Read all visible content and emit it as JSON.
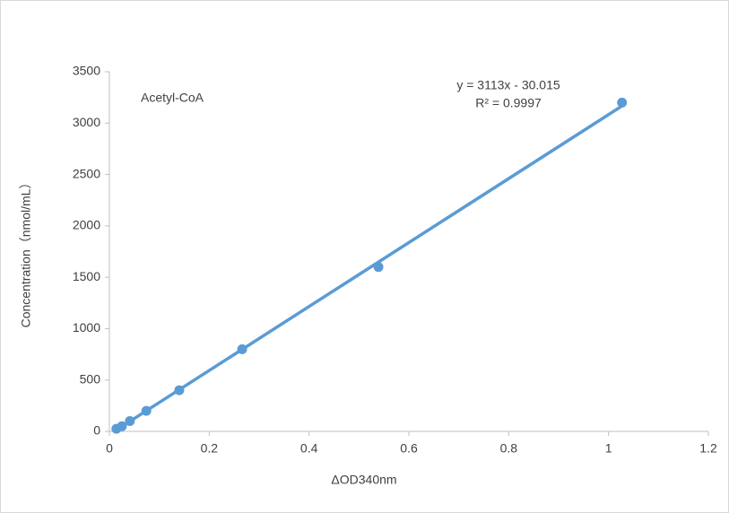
{
  "chart_data": {
    "type": "scatter",
    "annotation": "Acetyl-CoA",
    "x_label": "ΔOD340nm",
    "y_label": "Concentration（nmol/mL）",
    "series": [
      {
        "name": "Acetyl-CoA",
        "color": "#5b9bd5",
        "x": [
          0.014,
          0.025,
          0.041,
          0.074,
          0.14,
          0.266,
          0.539,
          1.027
        ],
        "values": [
          25,
          50,
          100,
          200,
          400,
          800,
          1600,
          3200
        ]
      }
    ],
    "trendline": {
      "slope": 3113,
      "intercept": -30.015,
      "equation": "y = 3113x - 30.015",
      "r2": "R² = 0.9997",
      "color": "#5b9bd5"
    },
    "xlim": [
      0,
      1.2
    ],
    "xticks": [
      0,
      0.2,
      0.4,
      0.6,
      0.8,
      1,
      1.2
    ],
    "ylim": [
      0,
      3500
    ],
    "yticks": [
      0,
      500,
      1000,
      1500,
      2000,
      2500,
      3000,
      3500
    ],
    "grid": false
  }
}
